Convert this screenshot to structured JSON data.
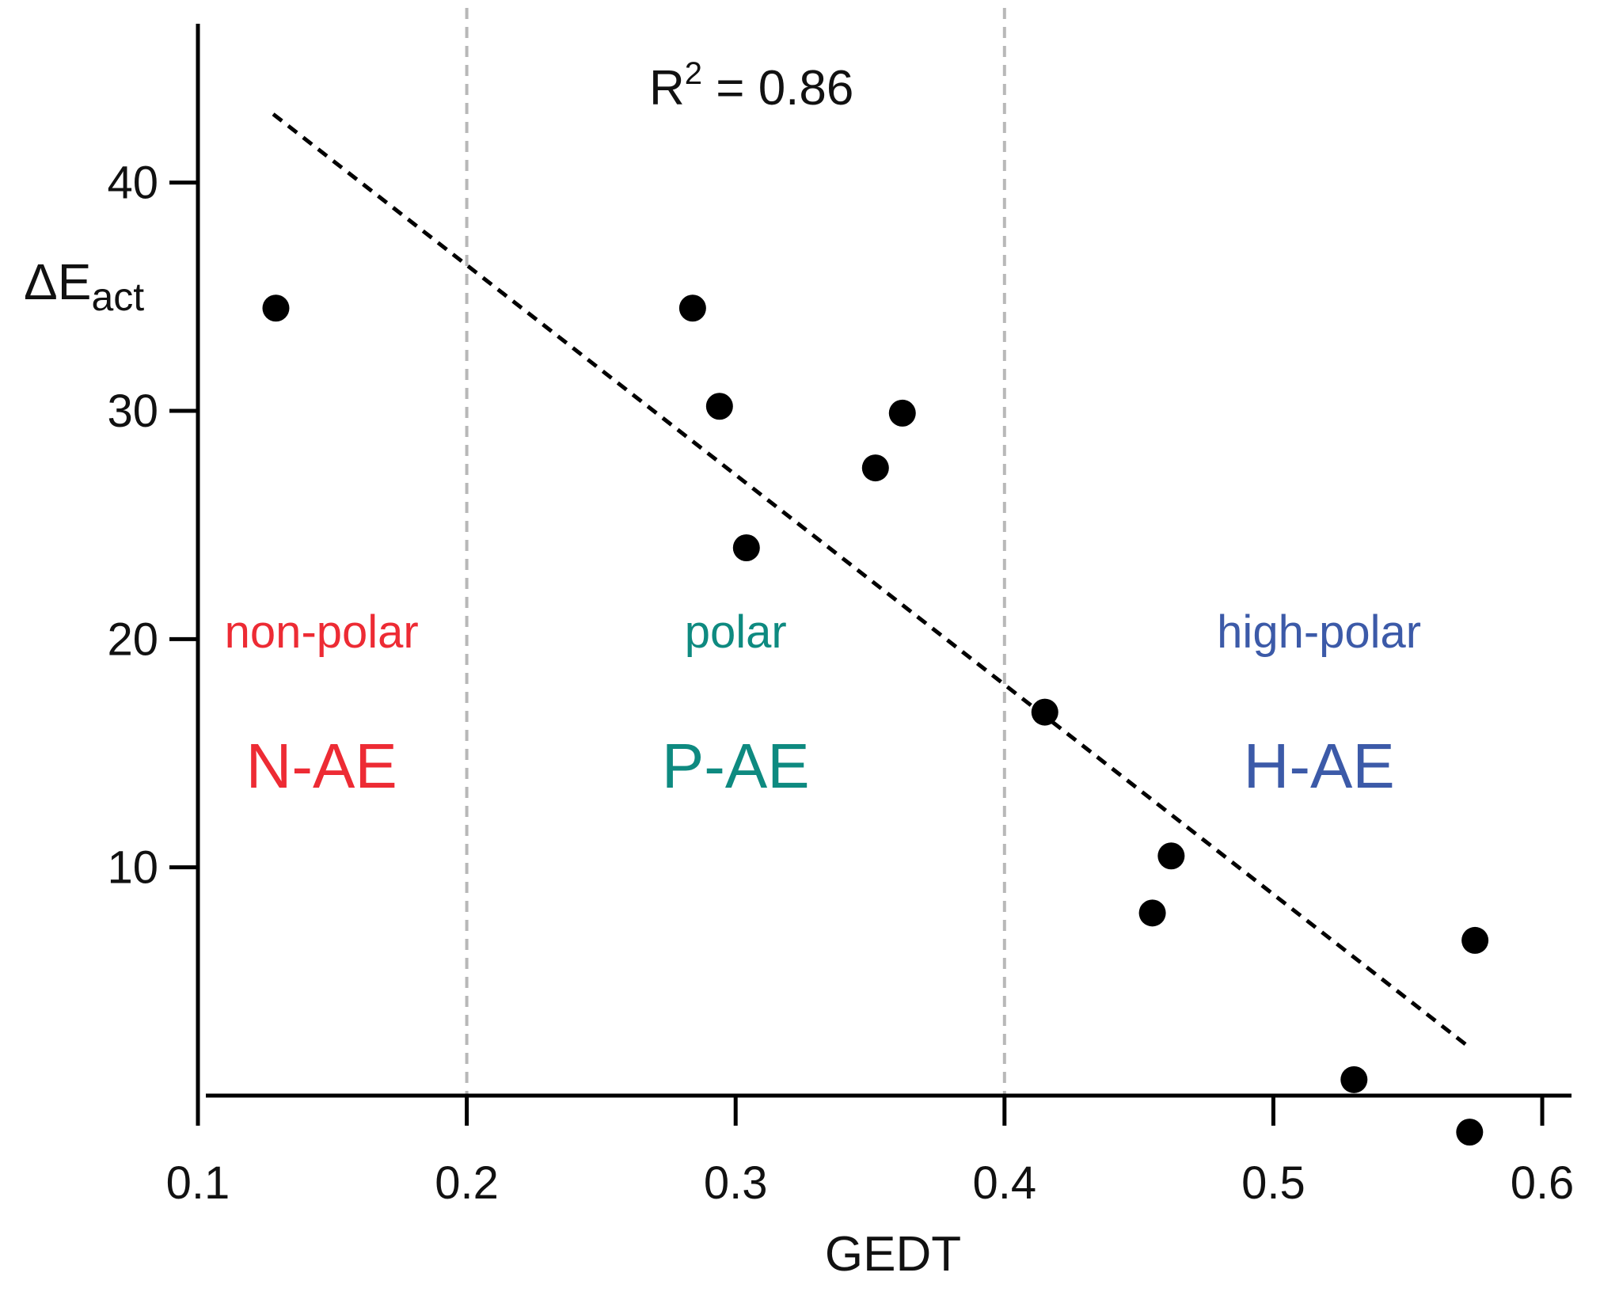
{
  "chart_data": {
    "type": "scatter",
    "xlabel": "GEDT",
    "ylabel": {
      "symbol": "ΔE",
      "subscript": "act"
    },
    "xlim": [
      0.1,
      0.605
    ],
    "ylim": [
      0,
      48
    ],
    "x_ticks": [
      0.1,
      0.2,
      0.3,
      0.4,
      0.5,
      0.6
    ],
    "x_tick_labels": [
      "0.1",
      "0.2",
      "0.3",
      "0.4",
      "0.5",
      "0.6"
    ],
    "y_ticks": [
      10,
      20,
      30,
      40
    ],
    "y_tick_labels": [
      "10",
      "20",
      "30",
      "40"
    ],
    "points": [
      {
        "x": 0.129,
        "y": 34.5
      },
      {
        "x": 0.284,
        "y": 34.5
      },
      {
        "x": 0.294,
        "y": 30.2
      },
      {
        "x": 0.304,
        "y": 24.0
      },
      {
        "x": 0.352,
        "y": 27.5
      },
      {
        "x": 0.362,
        "y": 29.9
      },
      {
        "x": 0.415,
        "y": 16.8
      },
      {
        "x": 0.455,
        "y": 8.0
      },
      {
        "x": 0.462,
        "y": 10.5
      },
      {
        "x": 0.53,
        "y": 0.7
      },
      {
        "x": 0.573,
        "y": -1.6
      },
      {
        "x": 0.575,
        "y": 6.8
      }
    ],
    "fit_line": {
      "x": [
        0.128,
        0.572
      ],
      "y": [
        43.0,
        2.2
      ],
      "style": "dashed"
    },
    "r_squared": {
      "base": "R",
      "exp": "2",
      "text": " = 0.86"
    },
    "region_boundaries": [
      0.2,
      0.4
    ],
    "regions": [
      {
        "name": "non-polar",
        "code": "N-AE",
        "color": "#ed2b34",
        "center_x": 0.146
      },
      {
        "name": "polar",
        "code": "P-AE",
        "color": "#0e8a80",
        "center_x": 0.3
      },
      {
        "name": "high-polar",
        "code": "H-AE",
        "color": "#3c5aa8",
        "center_x": 0.517
      }
    ],
    "colors": {
      "points": "#000000",
      "axis": "#000000",
      "boundary": "#b8b8b8"
    }
  }
}
